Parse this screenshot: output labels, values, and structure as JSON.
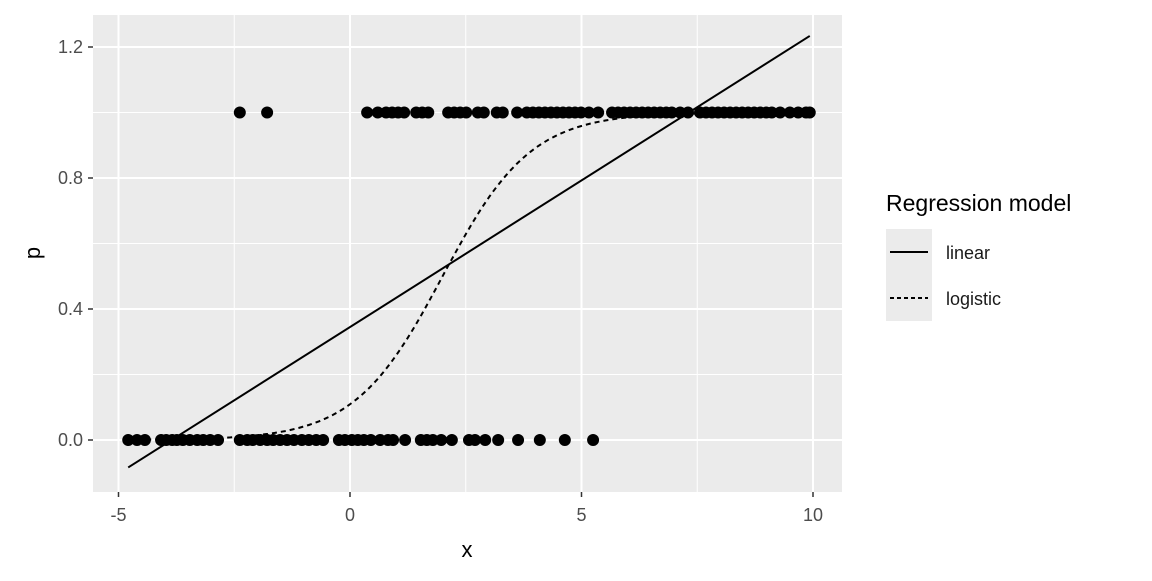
{
  "chart_data": {
    "type": "scatter",
    "title": "",
    "xlabel": "x",
    "ylabel": "p",
    "xlim": [
      -5.15,
      11
    ],
    "ylim": [
      -0.16,
      1.3
    ],
    "x_ticks": [
      -5,
      0,
      5,
      10
    ],
    "x_tick_labels": [
      "-5",
      "0",
      "5",
      "10"
    ],
    "y_ticks": [
      0.0,
      0.4,
      0.8,
      1.2
    ],
    "y_tick_labels": [
      "0.0",
      "0.4",
      "0.8",
      "1.2"
    ],
    "grid": true,
    "legend": {
      "title": "Regression model",
      "placement": "right",
      "entries": [
        {
          "label": "linear",
          "linetype": "solid"
        },
        {
          "label": "logistic",
          "linetype": "dashed"
        }
      ]
    },
    "points": {
      "y0": [
        -4.79,
        -4.6,
        -4.43,
        -4.08,
        -3.97,
        -3.84,
        -3.74,
        -3.61,
        -3.46,
        -3.3,
        -3.17,
        -3.02,
        -2.85,
        -2.38,
        -2.22,
        -2.1,
        -1.94,
        -1.79,
        -1.66,
        -1.51,
        -1.36,
        -1.21,
        -1.04,
        -0.89,
        -0.73,
        -0.58,
        -0.24,
        -0.11,
        0.04,
        0.17,
        0.3,
        0.45,
        0.65,
        0.82,
        0.93,
        1.19,
        1.53,
        1.66,
        1.79,
        1.97,
        2.2,
        2.57,
        2.7,
        2.92,
        3.2,
        3.63,
        4.1,
        4.64,
        5.25
      ],
      "y1": [
        -2.38,
        -1.79,
        0.37,
        0.6,
        0.78,
        0.91,
        1.04,
        1.17,
        1.43,
        1.56,
        1.69,
        2.12,
        2.25,
        2.38,
        2.51,
        2.76,
        2.89,
        3.17,
        3.3,
        3.61,
        3.82,
        3.95,
        4.08,
        4.21,
        4.34,
        4.47,
        4.6,
        4.73,
        4.86,
        4.99,
        5.16,
        5.36,
        5.66,
        5.79,
        5.92,
        6.05,
        6.18,
        6.31,
        6.44,
        6.57,
        6.7,
        6.83,
        6.95,
        7.13,
        7.3,
        7.56,
        7.69,
        7.82,
        7.95,
        8.08,
        8.21,
        8.34,
        8.47,
        8.6,
        8.73,
        8.86,
        8.99,
        9.11,
        9.29,
        9.5,
        9.68,
        9.85,
        9.93
      ]
    },
    "series": [
      {
        "name": "linear",
        "type": "line",
        "intercept": 0.345,
        "slope": 0.0895,
        "x_range": [
          -4.79,
          9.93
        ]
      },
      {
        "name": "logistic",
        "type": "logistic",
        "intercept": -2.1,
        "slope": 1.05,
        "x_range": [
          -4.79,
          9.93
        ]
      }
    ],
    "colors": {
      "panel": "#EBEBEB",
      "grid": "#FFFFFF",
      "points": "#000000",
      "lines": "#000000"
    }
  }
}
